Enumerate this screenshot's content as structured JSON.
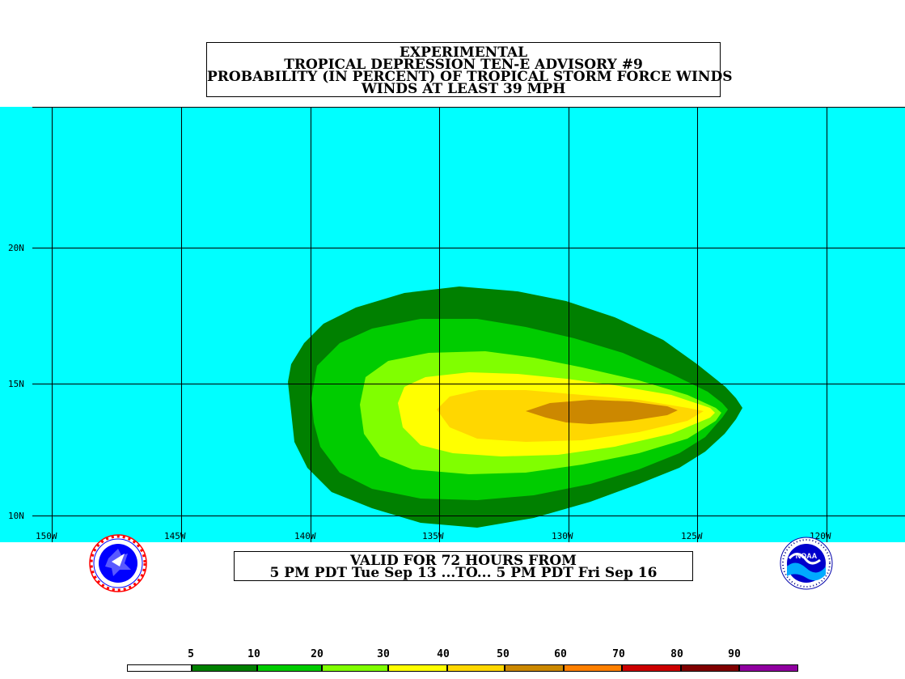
{
  "title": {
    "line1": "EXPERIMENTAL",
    "line2": "TROPICAL DEPRESSION TEN-E ADVISORY #9",
    "line3": "PROBABILITY (IN PERCENT) OF TROPICAL STORM FORCE WINDS",
    "line4": "WINDS AT LEAST 39 MPH"
  },
  "map": {
    "ocean_color": "#00ffff",
    "longitude_labels": [
      "150W",
      "145W",
      "140W",
      "135W",
      "130W",
      "125W",
      "120W"
    ],
    "latitude_labels": [
      "20N",
      "15N",
      "10N"
    ]
  },
  "valid": {
    "line1": "VALID FOR 72 HOURS FROM",
    "line2": "5 PM PDT Tue Sep 13 ...TO... 5 PM PDT Fri Sep 16"
  },
  "logos": {
    "left": "nws-logo-icon",
    "right": "noaa-logo-icon",
    "right_text": "NOAA"
  },
  "legend": {
    "labels": [
      "5",
      "10",
      "20",
      "30",
      "40",
      "50",
      "60",
      "70",
      "80",
      "90"
    ],
    "colors": [
      "#ffffff",
      "#008000",
      "#00cc00",
      "#80ff00",
      "#ffff00",
      "#ffd700",
      "#cc8800",
      "#ff8000",
      "#cc0000",
      "#800000",
      "#9000a0"
    ]
  },
  "probability_colors": {
    "band_5_10": "#008000",
    "band_10_20": "#00cc00",
    "band_20_30": "#80ff00",
    "band_30_40": "#ffff00",
    "band_40_50": "#ffd700",
    "band_50_60": "#cc8800"
  }
}
